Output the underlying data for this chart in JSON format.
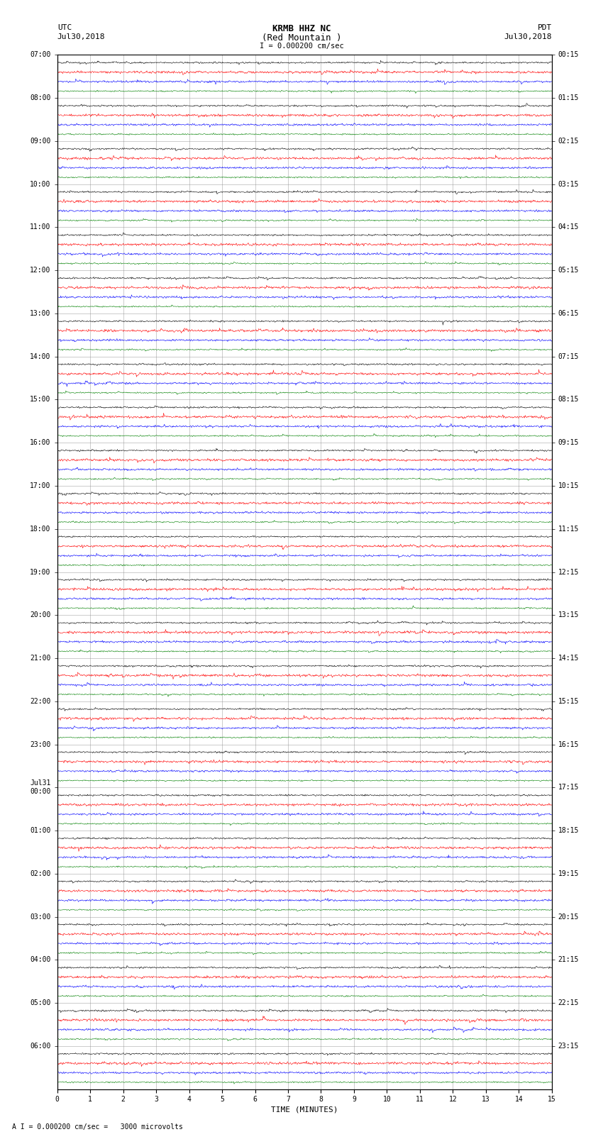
{
  "title_line1": "KRMB HHZ NC",
  "title_line2": "(Red Mountain )",
  "scale_label": "I = 0.000200 cm/sec",
  "footer_label": "A I = 0.000200 cm/sec =   3000 microvolts",
  "xlabel": "TIME (MINUTES)",
  "bg_color": "#ffffff",
  "trace_colors": [
    "black",
    "red",
    "blue",
    "green"
  ],
  "utc_labels": [
    "07:00",
    "08:00",
    "09:00",
    "10:00",
    "11:00",
    "12:00",
    "13:00",
    "14:00",
    "15:00",
    "16:00",
    "17:00",
    "18:00",
    "19:00",
    "20:00",
    "21:00",
    "22:00",
    "23:00",
    "Jul31\n00:00",
    "01:00",
    "02:00",
    "03:00",
    "04:00",
    "05:00",
    "06:00"
  ],
  "pdt_labels": [
    "00:15",
    "01:15",
    "02:15",
    "03:15",
    "04:15",
    "05:15",
    "06:15",
    "07:15",
    "08:15",
    "09:15",
    "10:15",
    "11:15",
    "12:15",
    "13:15",
    "14:15",
    "15:15",
    "16:15",
    "17:15",
    "18:15",
    "19:15",
    "20:15",
    "21:15",
    "22:15",
    "23:15"
  ],
  "n_hours": 24,
  "x_min": 0,
  "x_max": 15,
  "x_ticks": [
    0,
    1,
    2,
    3,
    4,
    5,
    6,
    7,
    8,
    9,
    10,
    11,
    12,
    13,
    14,
    15
  ],
  "noise_amplitude": [
    0.012,
    0.018,
    0.015,
    0.01
  ],
  "grid_color": "#888888",
  "fig_width": 8.5,
  "fig_height": 16.13,
  "dpi": 100
}
